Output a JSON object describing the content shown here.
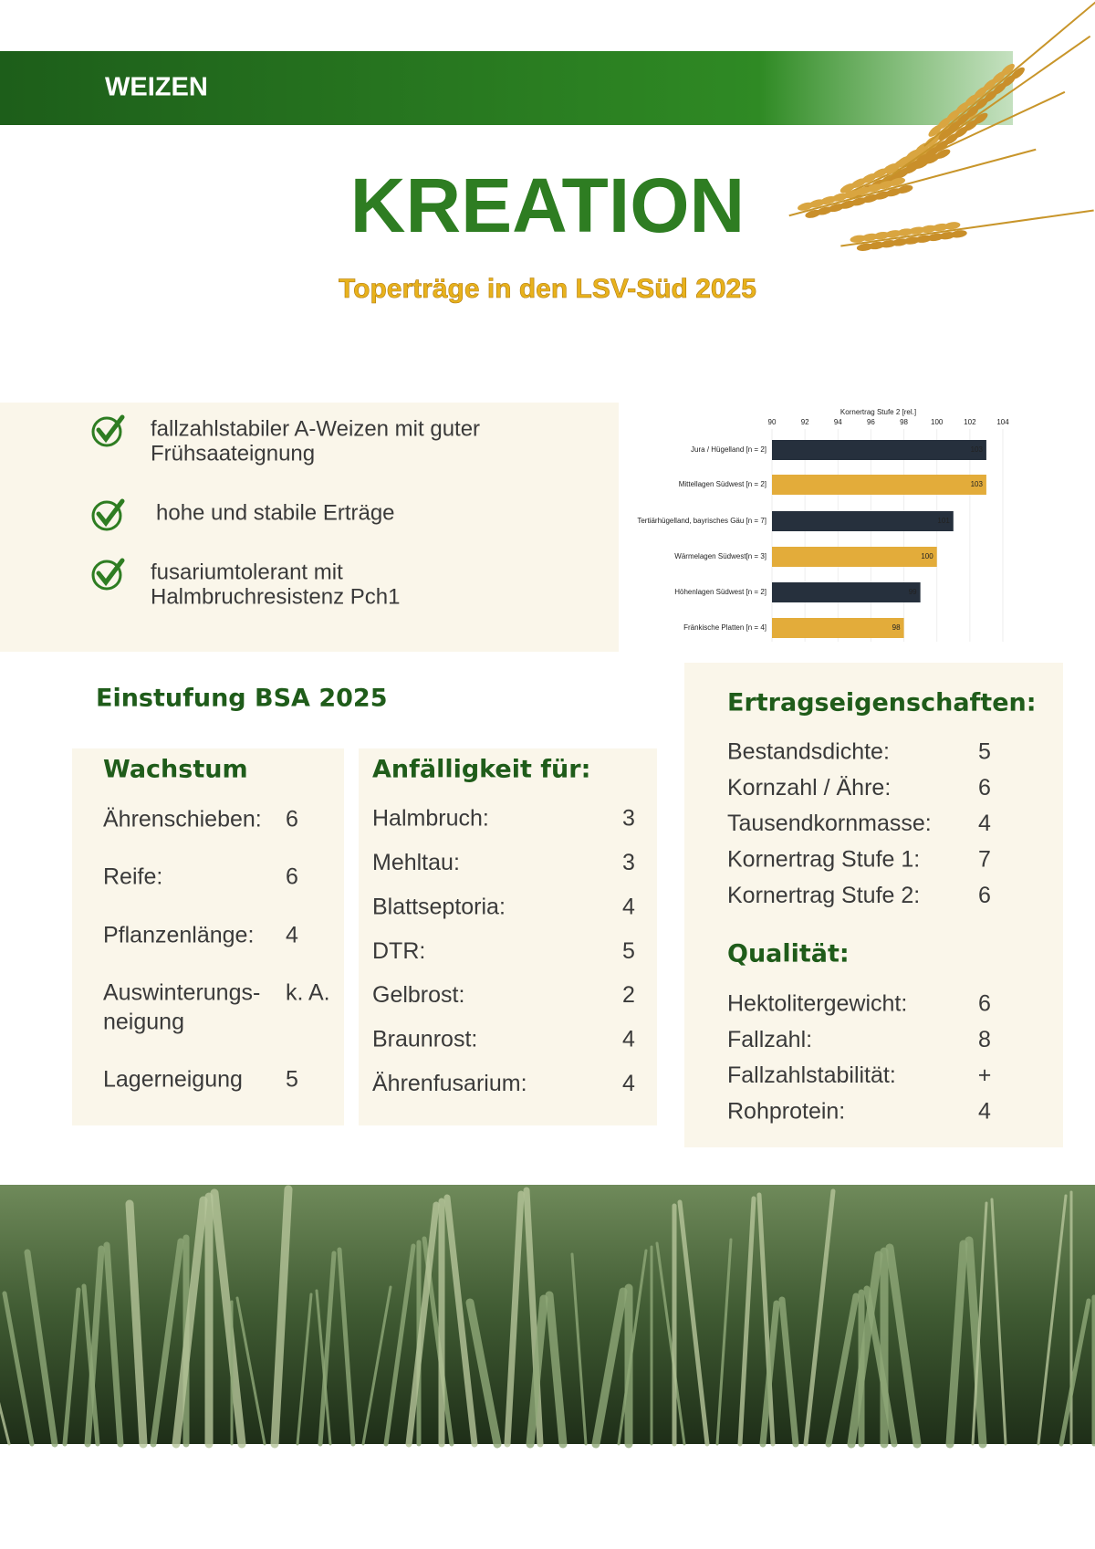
{
  "header": {
    "category": "WEIZEN",
    "title": "KREATION",
    "subtitle": "Toperträge in den LSV-Süd 2025"
  },
  "features": [
    {
      "lines": [
        "fallzahlstabiler A-Weizen mit guter",
        "Frühsaateignung"
      ]
    },
    {
      "lines": [
        "hohe und stabile Erträge"
      ]
    },
    {
      "lines": [
        "fusariumtolerant mit",
        "Halmbruchresistenz Pch1"
      ]
    }
  ],
  "chart_data": {
    "type": "bar",
    "orientation": "horizontal",
    "title": "Kornertrag Stufe 2 [rel.]",
    "categories": [
      "Jura / Hügelland [n = 2]",
      "Mittellagen Südwest [n = 2]",
      "Tertiärhügelland, bayrisches Gäu [n = 7]",
      "Wärmelagen Südwest[n = 3]",
      "Höhenlagen Südwest [n = 2]",
      "Fränkische Platten [n = 4]"
    ],
    "values": [
      103,
      103,
      101,
      100,
      99,
      98
    ],
    "colors": [
      "#26303d",
      "#e3ac3a",
      "#26303d",
      "#e3ac3a",
      "#26303d",
      "#e3ac3a"
    ],
    "xlim": [
      90,
      104
    ],
    "xticks": [
      90,
      92,
      94,
      96,
      98,
      100,
      102,
      104
    ],
    "grid": true
  },
  "bsa": {
    "title": "Einstufung BSA 2025",
    "wachstum": {
      "heading": "Wachstum",
      "rows": [
        {
          "label": [
            "Ährenschieben:"
          ],
          "value": "6"
        },
        {
          "label": [
            "Reife:"
          ],
          "value": "6"
        },
        {
          "label": [
            "Pflanzenlänge:"
          ],
          "value": "4"
        },
        {
          "label": [
            "Auswinterungs-",
            "neigung"
          ],
          "value": "k. A."
        },
        {
          "label": [
            "Lagerneigung"
          ],
          "value": "5"
        }
      ]
    },
    "anfaelligkeit": {
      "heading": "Anfälligkeit für:",
      "rows": [
        {
          "label": "Halmbruch:",
          "value": "3"
        },
        {
          "label": "Mehltau:",
          "value": "3"
        },
        {
          "label": "Blattseptoria:",
          "value": "4"
        },
        {
          "label": "DTR:",
          "value": "5"
        },
        {
          "label": "Gelbrost:",
          "value": "2"
        },
        {
          "label": "Braunrost:",
          "value": "4"
        },
        {
          "label": "Ährenfusarium:",
          "value": "4"
        }
      ]
    },
    "ertrag": {
      "heading": "Ertragseigenschaften:",
      "rows": [
        {
          "label": "Bestandsdichte:",
          "value": "5"
        },
        {
          "label": "Kornzahl / Ähre:",
          "value": "6"
        },
        {
          "label": "Tausendkornmasse:",
          "value": "4"
        },
        {
          "label": "Kornertrag Stufe 1:",
          "value": "7"
        },
        {
          "label": "Kornertrag Stufe 2:",
          "value": "6"
        }
      ]
    },
    "qualitaet": {
      "heading": "Qualität:",
      "rows": [
        {
          "label": "Hektolitergewicht:",
          "value": "6"
        },
        {
          "label": "Fallzahl:",
          "value": "8"
        },
        {
          "label": "Fallzahlstabilität:",
          "value": "+"
        },
        {
          "label": "Rohprotein:",
          "value": "4"
        }
      ]
    }
  }
}
